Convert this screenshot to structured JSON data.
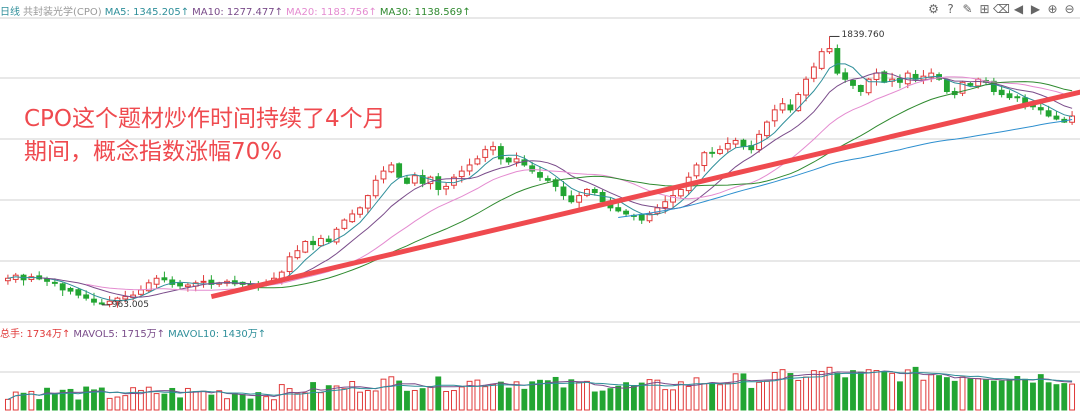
{
  "colors": {
    "up": "#e03a3a",
    "down": "#22a532",
    "ma5": "#2f8f9a",
    "ma10": "#7a4c8a",
    "ma20": "#e48bd0",
    "ma30": "#2f8a2f",
    "ma60": "#2d8fcf",
    "vol_ma5": "#7a4c8a",
    "vol_ma10": "#2f8f9a",
    "arrow": "#ef4a4f",
    "grid": "#d0d0d0"
  },
  "legend": {
    "period": "日线",
    "name": "共封装光学(CPO)",
    "ma5": "MA5: 1345.205↑",
    "ma10": "MA10: 1277.477↑",
    "ma20": "MA20: 1183.756↑",
    "ma30": "MA30: 1138.569↑"
  },
  "toolbar": [
    {
      "name": "settings-icon",
      "glyph": "⚙"
    },
    {
      "name": "help-icon",
      "glyph": "?"
    },
    {
      "name": "pen-icon",
      "glyph": "✎"
    },
    {
      "name": "gift-icon",
      "glyph": "⊞"
    },
    {
      "name": "trash-icon",
      "glyph": "⌫"
    },
    {
      "name": "prev-icon",
      "glyph": "◀"
    },
    {
      "name": "next-icon",
      "glyph": "▶"
    },
    {
      "name": "zoom-in-icon",
      "glyph": "⊕"
    },
    {
      "name": "zoom-out-icon",
      "glyph": "⊖"
    }
  ],
  "volume_legend": {
    "total": "总手: 1734万↑",
    "mavol5": "MAVOL5: 1715万↑",
    "mavol10": "MAVOL10: 1430万↑"
  },
  "annotation": {
    "line1": "CPO这个题材炒作时间持续了4个月",
    "line2": "期间，概念指数涨幅70%"
  },
  "high_label": "1839.760",
  "low_label": "963.005",
  "chart_data": {
    "type": "candlestick",
    "ylim": [
      930,
      1900
    ],
    "vol_max": 2400,
    "high": 1839.76,
    "low": 963.005,
    "trend_arrow": {
      "from_index": 26,
      "from_value": 990,
      "to_index": 154,
      "to_value": 1760
    },
    "points": [
      1050,
      1060,
      1045,
      1055,
      1048,
      1040,
      1035,
      1012,
      1008,
      995,
      985,
      972,
      968,
      975,
      985,
      990,
      995,
      1012,
      1035,
      1050,
      1045,
      1030,
      1025,
      1028,
      1035,
      1040,
      1030,
      1035,
      1040,
      1032,
      1030,
      1025,
      1028,
      1035,
      1050,
      1070,
      1120,
      1140,
      1170,
      1160,
      1180,
      1170,
      1210,
      1240,
      1260,
      1280,
      1320,
      1370,
      1400,
      1420,
      1380,
      1360,
      1385,
      1360,
      1380,
      1340,
      1350,
      1380,
      1400,
      1420,
      1440,
      1470,
      1480,
      1440,
      1430,
      1440,
      1420,
      1400,
      1380,
      1370,
      1350,
      1320,
      1300,
      1320,
      1340,
      1330,
      1300,
      1280,
      1270,
      1260,
      1255,
      1240,
      1260,
      1280,
      1300,
      1320,
      1340,
      1380,
      1420,
      1460,
      1460,
      1470,
      1490,
      1500,
      1480,
      1470,
      1520,
      1560,
      1600,
      1620,
      1600,
      1650,
      1700,
      1740,
      1790,
      1800,
      1720,
      1700,
      1680,
      1660,
      1700,
      1720,
      1690,
      1700,
      1690,
      1720,
      1700,
      1710,
      1720,
      1700,
      1660,
      1650,
      1690,
      1680,
      1700,
      1690,
      1660,
      1650,
      1640,
      1640,
      1620,
      1610,
      1600,
      1580,
      1570,
      1560,
      1580
    ]
  }
}
